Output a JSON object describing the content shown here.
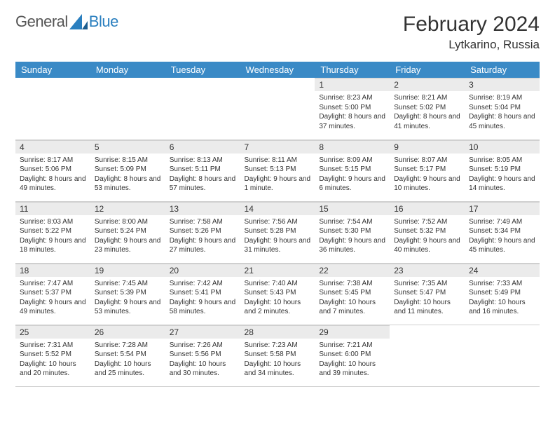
{
  "logo": {
    "text_gray": "General",
    "text_blue": "Blue"
  },
  "header": {
    "month_title": "February 2024",
    "location": "Lytkarino, Russia"
  },
  "colors": {
    "header_bg": "#3a8ac6",
    "header_text": "#ffffff",
    "daynum_bg": "#ebebeb",
    "border": "#cfcfcf",
    "body_text": "#333333",
    "logo_blue": "#2a7fbf"
  },
  "day_labels": [
    "Sunday",
    "Monday",
    "Tuesday",
    "Wednesday",
    "Thursday",
    "Friday",
    "Saturday"
  ],
  "first_weekday": 4,
  "days": [
    {
      "n": "1",
      "sunrise": "8:23 AM",
      "sunset": "5:00 PM",
      "daylight": "8 hours and 37 minutes."
    },
    {
      "n": "2",
      "sunrise": "8:21 AM",
      "sunset": "5:02 PM",
      "daylight": "8 hours and 41 minutes."
    },
    {
      "n": "3",
      "sunrise": "8:19 AM",
      "sunset": "5:04 PM",
      "daylight": "8 hours and 45 minutes."
    },
    {
      "n": "4",
      "sunrise": "8:17 AM",
      "sunset": "5:06 PM",
      "daylight": "8 hours and 49 minutes."
    },
    {
      "n": "5",
      "sunrise": "8:15 AM",
      "sunset": "5:09 PM",
      "daylight": "8 hours and 53 minutes."
    },
    {
      "n": "6",
      "sunrise": "8:13 AM",
      "sunset": "5:11 PM",
      "daylight": "8 hours and 57 minutes."
    },
    {
      "n": "7",
      "sunrise": "8:11 AM",
      "sunset": "5:13 PM",
      "daylight": "9 hours and 1 minute."
    },
    {
      "n": "8",
      "sunrise": "8:09 AM",
      "sunset": "5:15 PM",
      "daylight": "9 hours and 6 minutes."
    },
    {
      "n": "9",
      "sunrise": "8:07 AM",
      "sunset": "5:17 PM",
      "daylight": "9 hours and 10 minutes."
    },
    {
      "n": "10",
      "sunrise": "8:05 AM",
      "sunset": "5:19 PM",
      "daylight": "9 hours and 14 minutes."
    },
    {
      "n": "11",
      "sunrise": "8:03 AM",
      "sunset": "5:22 PM",
      "daylight": "9 hours and 18 minutes."
    },
    {
      "n": "12",
      "sunrise": "8:00 AM",
      "sunset": "5:24 PM",
      "daylight": "9 hours and 23 minutes."
    },
    {
      "n": "13",
      "sunrise": "7:58 AM",
      "sunset": "5:26 PM",
      "daylight": "9 hours and 27 minutes."
    },
    {
      "n": "14",
      "sunrise": "7:56 AM",
      "sunset": "5:28 PM",
      "daylight": "9 hours and 31 minutes."
    },
    {
      "n": "15",
      "sunrise": "7:54 AM",
      "sunset": "5:30 PM",
      "daylight": "9 hours and 36 minutes."
    },
    {
      "n": "16",
      "sunrise": "7:52 AM",
      "sunset": "5:32 PM",
      "daylight": "9 hours and 40 minutes."
    },
    {
      "n": "17",
      "sunrise": "7:49 AM",
      "sunset": "5:34 PM",
      "daylight": "9 hours and 45 minutes."
    },
    {
      "n": "18",
      "sunrise": "7:47 AM",
      "sunset": "5:37 PM",
      "daylight": "9 hours and 49 minutes."
    },
    {
      "n": "19",
      "sunrise": "7:45 AM",
      "sunset": "5:39 PM",
      "daylight": "9 hours and 53 minutes."
    },
    {
      "n": "20",
      "sunrise": "7:42 AM",
      "sunset": "5:41 PM",
      "daylight": "9 hours and 58 minutes."
    },
    {
      "n": "21",
      "sunrise": "7:40 AM",
      "sunset": "5:43 PM",
      "daylight": "10 hours and 2 minutes."
    },
    {
      "n": "22",
      "sunrise": "7:38 AM",
      "sunset": "5:45 PM",
      "daylight": "10 hours and 7 minutes."
    },
    {
      "n": "23",
      "sunrise": "7:35 AM",
      "sunset": "5:47 PM",
      "daylight": "10 hours and 11 minutes."
    },
    {
      "n": "24",
      "sunrise": "7:33 AM",
      "sunset": "5:49 PM",
      "daylight": "10 hours and 16 minutes."
    },
    {
      "n": "25",
      "sunrise": "7:31 AM",
      "sunset": "5:52 PM",
      "daylight": "10 hours and 20 minutes."
    },
    {
      "n": "26",
      "sunrise": "7:28 AM",
      "sunset": "5:54 PM",
      "daylight": "10 hours and 25 minutes."
    },
    {
      "n": "27",
      "sunrise": "7:26 AM",
      "sunset": "5:56 PM",
      "daylight": "10 hours and 30 minutes."
    },
    {
      "n": "28",
      "sunrise": "7:23 AM",
      "sunset": "5:58 PM",
      "daylight": "10 hours and 34 minutes."
    },
    {
      "n": "29",
      "sunrise": "7:21 AM",
      "sunset": "6:00 PM",
      "daylight": "10 hours and 39 minutes."
    }
  ]
}
